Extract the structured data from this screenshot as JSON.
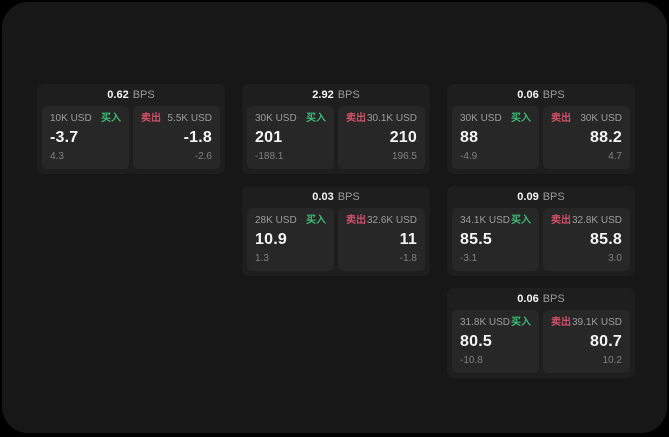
{
  "labels": {
    "buy": "买入",
    "sell": "卖出",
    "bps": "BPS"
  },
  "colors": {
    "page_bg": "#000000",
    "window_bg": "#171717",
    "card_bg": "#1e1e1e",
    "panel_bg": "#272727",
    "buy_green": "#3dba74",
    "sell_red": "#cf5069",
    "primary_text": "#f4f4f4",
    "secondary_text": "#9d9d9d"
  },
  "cards": [
    {
      "bps": "0.62",
      "buy": {
        "amount": "10K USD",
        "value": "-3.7",
        "delta": "4.3"
      },
      "sell": {
        "amount": "5.5K USD",
        "value": "-1.8",
        "delta": "-2.6"
      }
    },
    {
      "bps": "2.92",
      "buy": {
        "amount": "30K USD",
        "value": "201",
        "delta": "-188.1"
      },
      "sell": {
        "amount": "30.1K USD",
        "value": "210",
        "delta": "196.5"
      }
    },
    {
      "bps": "0.06",
      "buy": {
        "amount": "30K USD",
        "value": "88",
        "delta": "-4.9"
      },
      "sell": {
        "amount": "30K USD",
        "value": "88.2",
        "delta": "4.7"
      }
    },
    {
      "bps": "0.03",
      "buy": {
        "amount": "28K USD",
        "value": "10.9",
        "delta": "1.3"
      },
      "sell": {
        "amount": "32.6K USD",
        "value": "11",
        "delta": "-1.8"
      }
    },
    {
      "bps": "0.09",
      "buy": {
        "amount": "34.1K USD",
        "value": "85.5",
        "delta": "-3.1"
      },
      "sell": {
        "amount": "32.8K USD",
        "value": "85.8",
        "delta": "3.0"
      }
    },
    {
      "bps": "0.06",
      "buy": {
        "amount": "31.8K USD",
        "value": "80.5",
        "delta": "-10.8"
      },
      "sell": {
        "amount": "39.1K USD",
        "value": "80.7",
        "delta": "10.2"
      }
    }
  ]
}
